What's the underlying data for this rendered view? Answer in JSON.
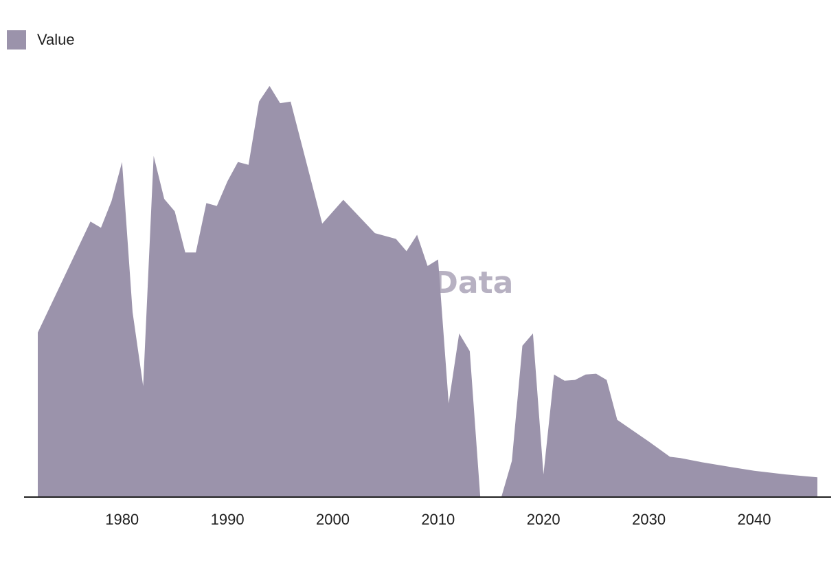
{
  "watermark": "GlobalData",
  "legend": {
    "label": "Value"
  },
  "colors": {
    "area": "#9b93ab",
    "axis": "#1f1f1f",
    "watermark": "#b7b1c2"
  },
  "chart_data": {
    "type": "area",
    "series": [
      {
        "name": "Value",
        "points": [
          [
            1972,
            0.4
          ],
          [
            1977,
            0.67
          ],
          [
            1978,
            0.655
          ],
          [
            1979,
            0.72
          ],
          [
            1980,
            0.815
          ],
          [
            1981,
            0.45
          ],
          [
            1982,
            0.27
          ],
          [
            1983,
            0.83
          ],
          [
            1984,
            0.725
          ],
          [
            1985,
            0.695
          ],
          [
            1986,
            0.595
          ],
          [
            1987,
            0.595
          ],
          [
            1988,
            0.715
          ],
          [
            1989,
            0.708
          ],
          [
            1990,
            0.768
          ],
          [
            1991,
            0.815
          ],
          [
            1992,
            0.808
          ],
          [
            1993,
            0.962
          ],
          [
            1994,
            1.0
          ],
          [
            1995,
            0.958
          ],
          [
            1996,
            0.962
          ],
          [
            1999,
            0.665
          ],
          [
            2001,
            0.723
          ],
          [
            2004,
            0.642
          ],
          [
            2006,
            0.628
          ],
          [
            2007,
            0.598
          ],
          [
            2008,
            0.638
          ],
          [
            2009,
            0.562
          ],
          [
            2010,
            0.578
          ],
          [
            2011,
            0.228
          ],
          [
            2012,
            0.398
          ],
          [
            2013,
            0.355
          ],
          [
            2014,
            0.0
          ],
          [
            null,
            null
          ],
          [
            2016,
            0.0
          ],
          [
            2017,
            0.088
          ],
          [
            2018,
            0.368
          ],
          [
            2019,
            0.398
          ],
          [
            2020,
            0.055
          ],
          [
            2021,
            0.298
          ],
          [
            2022,
            0.283
          ],
          [
            2023,
            0.285
          ],
          [
            2024,
            0.298
          ],
          [
            2025,
            0.3
          ],
          [
            2026,
            0.285
          ],
          [
            2027,
            0.188
          ],
          [
            2030,
            0.135
          ],
          [
            2032,
            0.098
          ],
          [
            2033,
            0.095
          ],
          [
            2035,
            0.085
          ],
          [
            2038,
            0.072
          ],
          [
            2040,
            0.064
          ],
          [
            2043,
            0.055
          ],
          [
            2046,
            0.048
          ]
        ]
      }
    ],
    "x_ticks": [
      "1980",
      "1990",
      "2000",
      "2010",
      "2020",
      "2030",
      "2040"
    ],
    "xlim": [
      1972,
      2046
    ],
    "ylim": [
      0,
      1
    ],
    "grid": false,
    "legend_position": "top-left"
  }
}
